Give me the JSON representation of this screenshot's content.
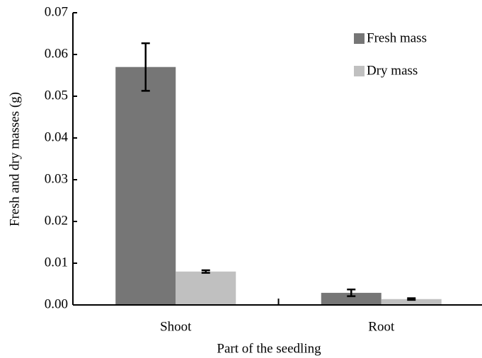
{
  "chart_data": {
    "type": "bar",
    "x_label": "Part of the seedling",
    "y_label": "Fresh and dry masses (g)",
    "categories": [
      "Shoot",
      "Root"
    ],
    "series": [
      {
        "name": "Fresh mass",
        "color": "#767676",
        "values": [
          0.057,
          0.0029
        ],
        "errors": [
          0.0057,
          0.0008
        ]
      },
      {
        "name": "Dry mass",
        "color": "#c0c0c0",
        "values": [
          0.008,
          0.0014
        ],
        "errors": [
          0.0003,
          0.0002
        ]
      }
    ],
    "ylim": [
      0,
      0.07
    ],
    "yticks": [
      {
        "value": 0,
        "label": "0.00"
      },
      0.01,
      0.02,
      0.03,
      0.04,
      0.05,
      0.06,
      0.07
    ],
    "legend": "upper right"
  }
}
